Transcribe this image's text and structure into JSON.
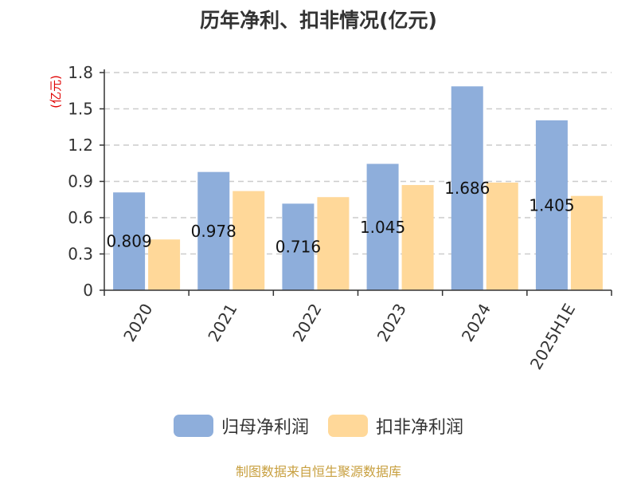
{
  "chart_data": {
    "type": "bar",
    "title": "历年净利、扣非情况(亿元)",
    "ylabel": "(亿元)",
    "categories": [
      "2020",
      "2021",
      "2022",
      "2023",
      "2024",
      "2025H1E"
    ],
    "series": [
      {
        "name": "归母净利润",
        "color": "#8eaedb",
        "values": [
          0.809,
          0.978,
          0.716,
          1.045,
          1.686,
          1.405
        ]
      },
      {
        "name": "扣非净利润",
        "color": "#ffd899",
        "values": [
          0.42,
          0.82,
          0.77,
          0.87,
          0.89,
          0.78
        ]
      }
    ],
    "data_labels": [
      "0.809",
      "0.978",
      "0.716",
      "1.045",
      "1.686",
      "1.405"
    ],
    "yticks": [
      "0",
      "0.3",
      "0.6",
      "0.9",
      "1.2",
      "1.5",
      "1.8"
    ],
    "ylim": [
      0,
      1.8
    ],
    "grid": true,
    "legend_position": "bottom"
  },
  "source": "制图数据来自恒生聚源数据库"
}
